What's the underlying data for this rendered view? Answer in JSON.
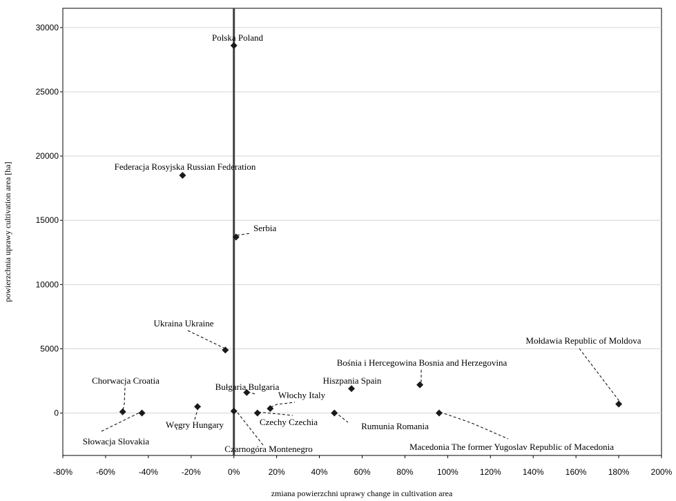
{
  "chart_data": {
    "type": "scatter",
    "title": "",
    "xlabel": "zmiana powierzchni uprawy change in cultivation area",
    "ylabel": "powierzchnia uprawy cultivation area [ha]",
    "xlim": [
      -0.8,
      2.0
    ],
    "ylim": [
      -3300,
      31500
    ],
    "x_ticks": [
      -0.8,
      -0.6,
      -0.4,
      -0.2,
      0,
      0.2,
      0.4,
      0.6,
      0.8,
      1.0,
      1.2,
      1.4,
      1.6,
      1.8,
      2.0
    ],
    "x_tick_labels": [
      "-80%",
      "-60%",
      "-40%",
      "-20%",
      "0%",
      "20%",
      "40%",
      "60%",
      "80%",
      "100%",
      "120%",
      "140%",
      "160%",
      "180%",
      "200%"
    ],
    "y_ticks": [
      0,
      5000,
      10000,
      15000,
      20000,
      25000,
      30000
    ],
    "y_tick_labels": [
      "0",
      "5000",
      "10000",
      "15000",
      "20000",
      "25000",
      "30000"
    ],
    "grid": "horizontal",
    "reference_line_x": 0,
    "points": [
      {
        "label": "Polska Poland",
        "x": 0.0,
        "y": 28600
      },
      {
        "label": "Federacja Rosyjska Russian Federation",
        "x": -0.24,
        "y": 18500
      },
      {
        "label": "Serbia",
        "x": 0.01,
        "y": 13700
      },
      {
        "label": "Ukraina Ukraine",
        "x": -0.04,
        "y": 4900
      },
      {
        "label": "Mołdawia Republic of Moldova",
        "x": 1.8,
        "y": 700
      },
      {
        "label": "Bośnia i Hercegowina Bosnia and Herzegovina",
        "x": 0.87,
        "y": 2200
      },
      {
        "label": "Hiszpania Spain",
        "x": 0.55,
        "y": 1900
      },
      {
        "label": "Bułgaria Bulgaria",
        "x": 0.06,
        "y": 1600
      },
      {
        "label": "Włochy Italy",
        "x": 0.17,
        "y": 350
      },
      {
        "label": "Chorwacja Croatia",
        "x": -0.52,
        "y": 100
      },
      {
        "label": "Słowacja Slovakia",
        "x": -0.43,
        "y": 0
      },
      {
        "label": "Węgry Hungary",
        "x": -0.17,
        "y": 500
      },
      {
        "label": "Czarnogóra Montenegro",
        "x": 0.0,
        "y": 150
      },
      {
        "label": "Czechy Czechia",
        "x": 0.11,
        "y": 0
      },
      {
        "label": "Rumunia Romania",
        "x": 0.47,
        "y": 0
      },
      {
        "label": "Macedonia The former Yugoslav Republic of Macedonia",
        "x": 0.96,
        "y": 0
      }
    ]
  }
}
